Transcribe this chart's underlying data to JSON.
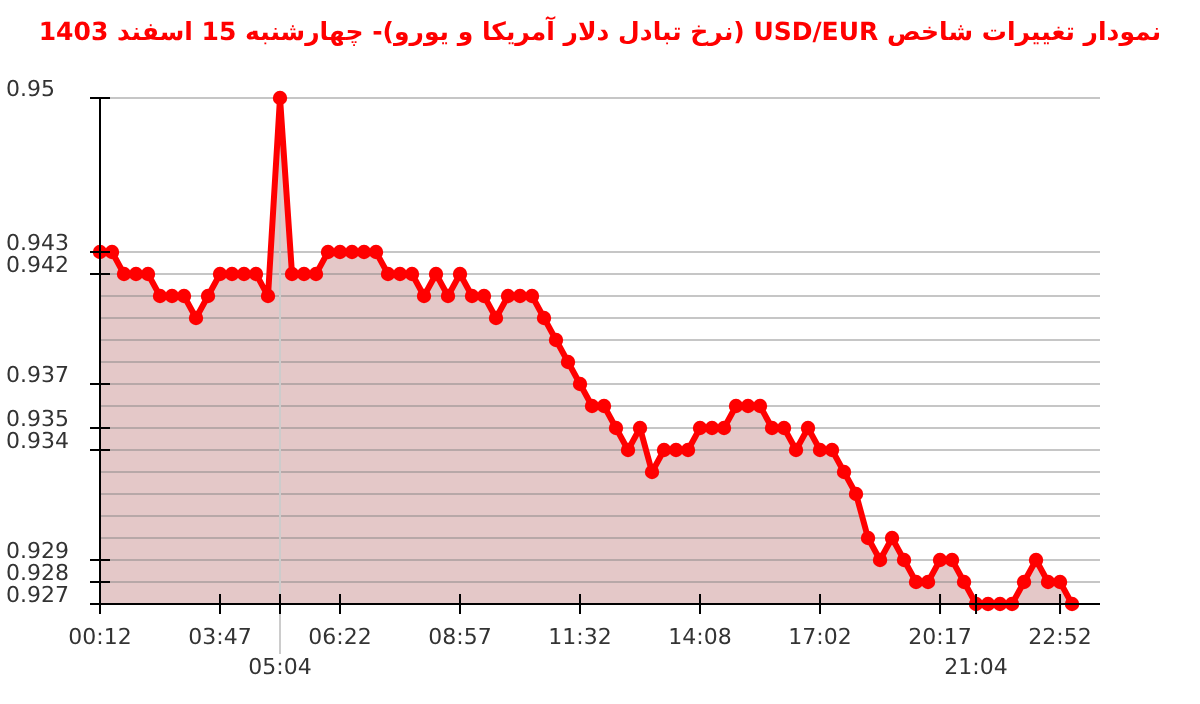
{
  "chart_data": {
    "type": "area",
    "title": "نمودار تغییرات شاخص USD/EUR (نرخ تبادل دلار آمریکا و یورو)- چهارشنبه 15 اسفند 1403",
    "categories": [
      "00:12",
      null,
      null,
      null,
      null,
      null,
      null,
      null,
      null,
      null,
      "03:47",
      null,
      null,
      null,
      null,
      "05:04",
      null,
      null,
      null,
      null,
      "06:22",
      null,
      null,
      null,
      null,
      null,
      null,
      null,
      null,
      null,
      "08:57",
      null,
      null,
      null,
      null,
      null,
      null,
      null,
      null,
      null,
      "11:32",
      null,
      null,
      null,
      null,
      null,
      null,
      null,
      null,
      null,
      "14:08",
      null,
      null,
      null,
      null,
      null,
      null,
      null,
      null,
      null,
      "17:02",
      null,
      null,
      null,
      null,
      null,
      null,
      null,
      null,
      null,
      "20:17",
      null,
      null,
      "21:04",
      null,
      null,
      null,
      null,
      null,
      null,
      "22:52",
      null
    ],
    "series": [
      {
        "color": "#ff0000",
        "values": [
          0.943,
          0.943,
          0.942,
          0.942,
          0.942,
          0.941,
          0.941,
          0.941,
          0.94,
          0.941,
          0.942,
          0.942,
          0.942,
          0.942,
          0.941,
          0.95,
          0.942,
          0.942,
          0.942,
          0.943,
          0.943,
          0.943,
          0.943,
          0.943,
          0.942,
          0.942,
          0.942,
          0.941,
          0.942,
          0.941,
          0.942,
          0.941,
          0.941,
          0.94,
          0.941,
          0.941,
          0.941,
          0.94,
          0.939,
          0.938,
          0.937,
          0.936,
          0.936,
          0.935,
          0.934,
          0.935,
          0.933,
          0.934,
          0.934,
          0.934,
          0.935,
          0.935,
          0.935,
          0.936,
          0.936,
          0.936,
          0.935,
          0.935,
          0.934,
          0.935,
          0.934,
          0.934,
          0.933,
          0.932,
          0.93,
          0.929,
          0.93,
          0.929,
          0.928,
          0.928,
          0.929,
          0.929,
          0.928,
          0.927,
          0.927,
          0.927,
          0.927,
          0.928,
          0.929,
          0.928,
          0.928,
          0.927
        ]
      }
    ],
    "ylim": [
      0.927,
      0.95
    ],
    "yticks": [
      0.927,
      0.928,
      0.929,
      {
        "value": 0.93,
        "label": null
      },
      {
        "value": 0.931,
        "label": null
      },
      {
        "value": 0.932,
        "label": null
      },
      {
        "value": 0.933,
        "label": null
      },
      0.934,
      0.935,
      {
        "value": 0.936,
        "label": null
      },
      0.937,
      {
        "value": 0.938,
        "label": null
      },
      {
        "value": 0.939,
        "label": null
      },
      {
        "value": 0.94,
        "label": null
      },
      {
        "value": 0.941,
        "label": null
      },
      0.942,
      0.943,
      0.95
    ],
    "grid": "y",
    "marker": "circle",
    "ref_lines": [
      {
        "axis": "x",
        "value": "05:04",
        "color": "#cccccc"
      }
    ]
  }
}
